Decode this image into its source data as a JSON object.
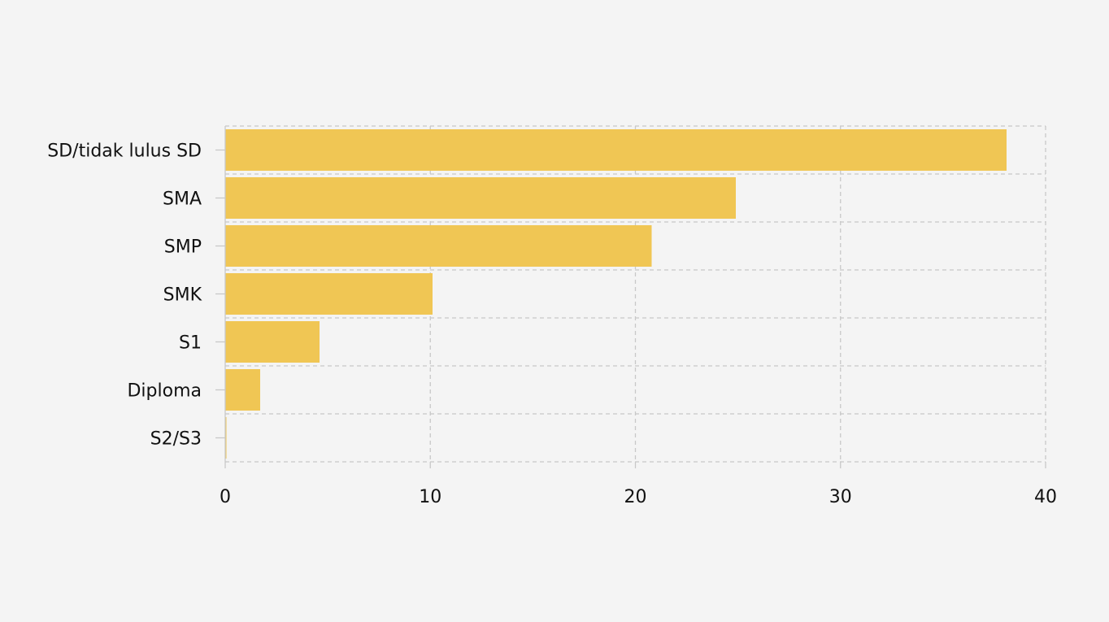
{
  "chart_data": {
    "type": "bar",
    "orientation": "horizontal",
    "categories": [
      "SD/tidak lulus SD",
      "SMA",
      "SMP",
      "SMK",
      "S1",
      "Diploma",
      "S2/S3"
    ],
    "values": [
      38.1,
      24.9,
      20.8,
      10.1,
      4.6,
      1.7,
      0.05
    ],
    "title": "",
    "xlabel": "",
    "ylabel": "",
    "xlim": [
      0,
      40
    ],
    "xticks": [
      "0",
      "10",
      "20",
      "30",
      "40"
    ],
    "grid": true,
    "legend": "none",
    "bar_color": "#f0c654",
    "background_color": "#f4f4f4"
  }
}
